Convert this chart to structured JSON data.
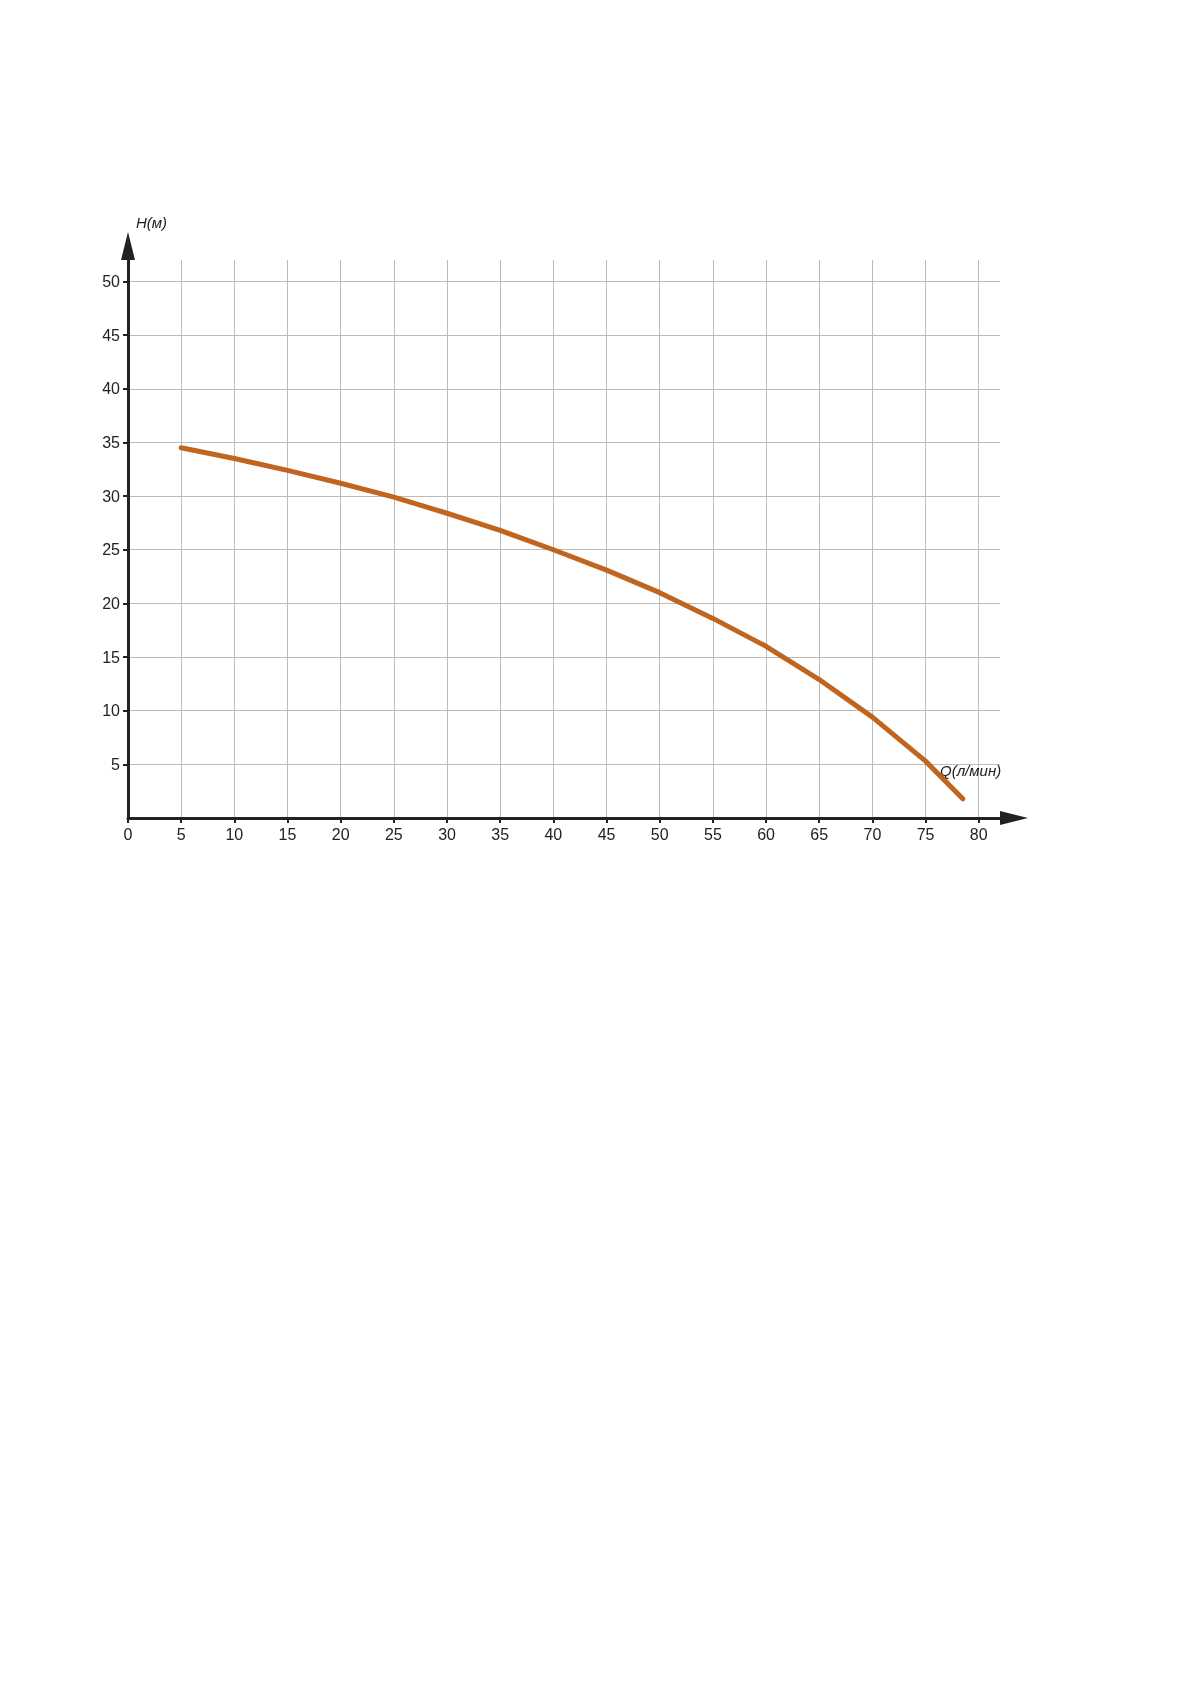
{
  "chart_data": {
    "type": "line",
    "xlabel": "Q(л/мин)",
    "ylabel": "H(м)",
    "x": [
      5,
      10,
      15,
      20,
      25,
      30,
      35,
      40,
      45,
      50,
      55,
      60,
      65,
      70,
      75,
      78.5
    ],
    "series": [
      {
        "color": "#c0651f",
        "values": [
          34.5,
          33.5,
          32.4,
          31.2,
          29.9,
          28.4,
          26.8,
          25,
          23.1,
          21,
          18.6,
          16,
          12.9,
          9.4,
          5.3,
          1.8
        ]
      }
    ],
    "xlim": [
      0,
      82
    ],
    "ylim": [
      0,
      52
    ],
    "xticks": [
      0,
      5,
      10,
      15,
      20,
      25,
      30,
      35,
      40,
      45,
      50,
      55,
      60,
      65,
      70,
      75,
      80
    ],
    "yticks": [
      5,
      10,
      15,
      20,
      25,
      30,
      35,
      40,
      45,
      50
    ],
    "grid": true,
    "marker": "none",
    "line_style": "solid"
  }
}
